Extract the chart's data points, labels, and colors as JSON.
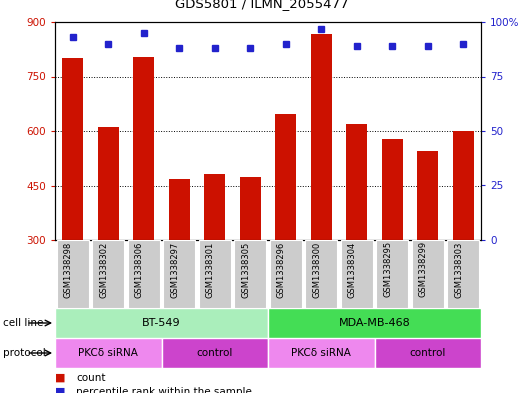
{
  "title": "GDS5801 / ILMN_2055477",
  "samples": [
    "GSM1338298",
    "GSM1338302",
    "GSM1338306",
    "GSM1338297",
    "GSM1338301",
    "GSM1338305",
    "GSM1338296",
    "GSM1338300",
    "GSM1338304",
    "GSM1338295",
    "GSM1338299",
    "GSM1338303"
  ],
  "counts": [
    800,
    612,
    805,
    468,
    483,
    474,
    648,
    868,
    620,
    578,
    545,
    600
  ],
  "percentiles": [
    93,
    90,
    95,
    88,
    88,
    88,
    90,
    97,
    89,
    89,
    89,
    90
  ],
  "ylim_left": [
    300,
    900
  ],
  "ylim_right": [
    0,
    100
  ],
  "yticks_left": [
    300,
    450,
    600,
    750,
    900
  ],
  "yticks_right": [
    0,
    25,
    50,
    75,
    100
  ],
  "bar_color": "#cc1100",
  "dot_color": "#2222cc",
  "grid_color": "#333333",
  "cell_line_groups": [
    {
      "label": "BT-549",
      "start": 0,
      "end": 6,
      "color": "#aaeebb"
    },
    {
      "label": "MDA-MB-468",
      "start": 6,
      "end": 12,
      "color": "#44dd55"
    }
  ],
  "protocol_groups": [
    {
      "label": "PKCδ siRNA",
      "start": 0,
      "end": 3,
      "color": "#ee88ee"
    },
    {
      "label": "control",
      "start": 3,
      "end": 6,
      "color": "#cc55cc"
    },
    {
      "label": "PKCδ siRNA",
      "start": 6,
      "end": 9,
      "color": "#ee88ee"
    },
    {
      "label": "control",
      "start": 9,
      "end": 12,
      "color": "#cc55cc"
    }
  ],
  "cell_line_label": "cell line",
  "protocol_label": "protocol",
  "legend_count": "count",
  "legend_percentile": "percentile rank within the sample",
  "bg_color": "#ffffff",
  "tick_color_left": "#cc1100",
  "tick_color_right": "#2222cc",
  "sample_bg": "#cccccc"
}
